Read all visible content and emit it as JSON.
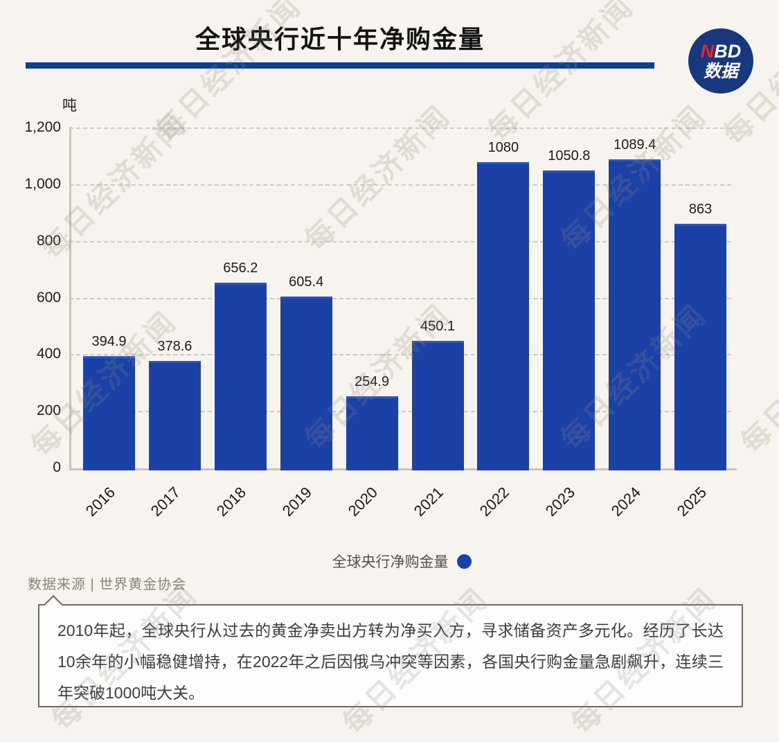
{
  "header": {
    "title": "全球央行近十年净购金量",
    "divider_color": "#0c3f8f",
    "logo": {
      "line1_accent": "N",
      "line1_rest": "BD",
      "line2": "数据",
      "bg": "#17377e",
      "accent": "#e8262e"
    }
  },
  "chart_data": {
    "type": "bar",
    "title": "全球央行近十年净购金量",
    "unit_label": "吨",
    "xlabel": "",
    "ylabel": "吨",
    "categories": [
      "2016",
      "2017",
      "2018",
      "2019",
      "2020",
      "2021",
      "2022",
      "2023",
      "2024",
      "2025"
    ],
    "values": [
      394.9,
      378.6,
      656.2,
      605.4,
      254.9,
      450.1,
      1080,
      1050.8,
      1089.4,
      863
    ],
    "value_labels": [
      "394.9",
      "378.6",
      "656.2",
      "605.4",
      "254.9",
      "450.1",
      "1080",
      "1050.8",
      "1089.4",
      "863"
    ],
    "ylim": [
      0,
      1200
    ],
    "yticks": [
      {
        "v": 0,
        "label": "0"
      },
      {
        "v": 200,
        "label": "200"
      },
      {
        "v": 400,
        "label": "400"
      },
      {
        "v": 600,
        "label": "600"
      },
      {
        "v": 800,
        "label": "800"
      },
      {
        "v": 1000,
        "label": "1,000"
      },
      {
        "v": 1200,
        "label": "1,200"
      }
    ],
    "grid": true,
    "bar_color": "#1b41a7",
    "legend": {
      "label": "全球央行净购金量",
      "dot_color": "#1b41a7",
      "position": "bottom-center"
    }
  },
  "source": {
    "text": "数据来源 | 世界黄金协会"
  },
  "note": {
    "text": "2010年起，全球央行从过去的黄金净卖出方转为净买入方，寻求储备资产多元化。经历了长达10余年的小幅稳健增持，在2022年之后因俄乌冲突等因素，各国央行购金量急剧飙升，连续三年突破1000吨大关。"
  },
  "watermark": {
    "text": "每日经济新闻"
  }
}
